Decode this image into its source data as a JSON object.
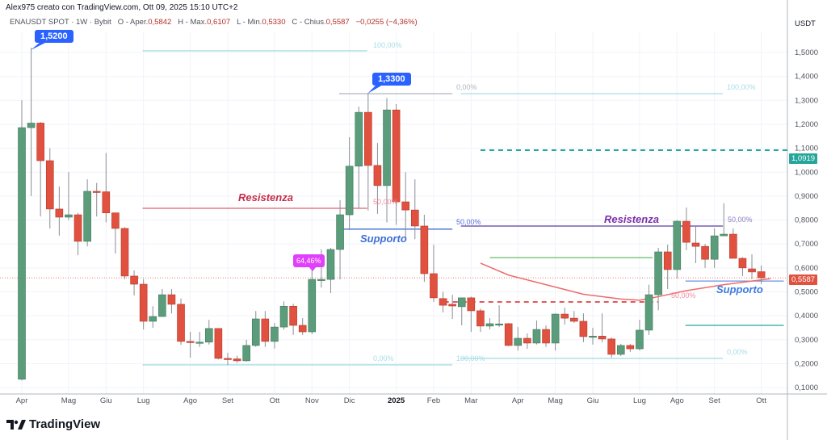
{
  "header": {
    "author_line": "Alex975 creato con TradingView.com, Ott 09, 2025 15:10 UTC+2",
    "symbol": "ENAUSDT SPOT · 1W · Bybit",
    "open_label": "O - Aper.",
    "open": "0,5842",
    "high_label": "H - Max.",
    "high": "0,6107",
    "low_label": "L - Min.",
    "low": "0,5330",
    "close_label": "C - Chius.",
    "close": "0,5587",
    "change": "−0,0255 (−4,36%)"
  },
  "axis": {
    "currency": "USDT",
    "current_price": "0,5587",
    "alert_price": "1,0919"
  },
  "brand": "TradingView",
  "colors": {
    "up": "#5b9c7b",
    "down": "#e0513f",
    "axis_current": "#e0513f",
    "axis_alert": "#26a69a",
    "callout": "#2962ff"
  },
  "annotations": {
    "callout_high1": "1,5200",
    "callout_high2": "1,3300",
    "pct_label": "64,46%",
    "resistenza1": "Resistenza",
    "supporto1": "Supporto",
    "resistenza2": "Resistenza",
    "supporto2": "Supporto",
    "fib1_top": "100,00%",
    "fib1_mid": "50,00%",
    "fib1_bottom": "0,00%",
    "fib2_top_left": "0,00%",
    "fib2_top_right": "100,00%",
    "fib2_mid_left": "50,00%",
    "fib2_mid_right": "50,00%",
    "fib2_bottom_left": "100,00%",
    "fib2_bottom_right": "0,00%",
    "fib3_mid": "50,00%"
  },
  "chart_data": {
    "type": "candlestick",
    "title": "ENAUSDT SPOT · 1W · Bybit",
    "ylabel": "USDT",
    "ylim": [
      0.07,
      1.6
    ],
    "y_ticks": [
      "0,1000",
      "0,2000",
      "0,3000",
      "0,4000",
      "0,5000",
      "0,6000",
      "0,7000",
      "0,8000",
      "0,9000",
      "1,0000",
      "1,1000",
      "1,2000",
      "1,3000",
      "1,4000",
      "1,5000"
    ],
    "x_ticks": [
      {
        "label": "Apr",
        "index": 0
      },
      {
        "label": "Mag",
        "index": 5
      },
      {
        "label": "Giu",
        "index": 9
      },
      {
        "label": "Lug",
        "index": 13
      },
      {
        "label": "Ago",
        "index": 18
      },
      {
        "label": "Set",
        "index": 22
      },
      {
        "label": "Ott",
        "index": 27
      },
      {
        "label": "Nov",
        "index": 31
      },
      {
        "label": "Dic",
        "index": 35
      },
      {
        "label": "2025",
        "index": 40
      },
      {
        "label": "Feb",
        "index": 44
      },
      {
        "label": "Mar",
        "index": 48
      },
      {
        "label": "Apr",
        "index": 53
      },
      {
        "label": "Mag",
        "index": 57
      },
      {
        "label": "Giu",
        "index": 61
      },
      {
        "label": "Lug",
        "index": 66
      },
      {
        "label": "Ago",
        "index": 70
      },
      {
        "label": "Set",
        "index": 74
      },
      {
        "label": "Ott",
        "index": 79
      }
    ],
    "candles_ohlc": [
      [
        0.135,
        1.3,
        0.13,
        1.186
      ],
      [
        1.186,
        1.52,
        0.9,
        1.205
      ],
      [
        1.205,
        1.21,
        0.815,
        1.048
      ],
      [
        1.048,
        1.1,
        0.765,
        0.846
      ],
      [
        0.846,
        0.94,
        0.735,
        0.812
      ],
      [
        0.812,
        1.0,
        0.8,
        0.822
      ],
      [
        0.822,
        0.83,
        0.653,
        0.711
      ],
      [
        0.711,
        0.97,
        0.69,
        0.92
      ],
      [
        0.92,
        0.955,
        0.815,
        0.918
      ],
      [
        0.918,
        1.08,
        0.79,
        0.83
      ],
      [
        0.83,
        0.83,
        0.66,
        0.765
      ],
      [
        0.765,
        0.77,
        0.553,
        0.566
      ],
      [
        0.566,
        0.59,
        0.485,
        0.532
      ],
      [
        0.532,
        0.553,
        0.343,
        0.377
      ],
      [
        0.377,
        0.44,
        0.35,
        0.397
      ],
      [
        0.397,
        0.512,
        0.395,
        0.488
      ],
      [
        0.488,
        0.512,
        0.41,
        0.448
      ],
      [
        0.448,
        0.472,
        0.279,
        0.293
      ],
      [
        0.293,
        0.333,
        0.225,
        0.29
      ],
      [
        0.29,
        0.333,
        0.27,
        0.29
      ],
      [
        0.29,
        0.383,
        0.28,
        0.347
      ],
      [
        0.347,
        0.347,
        0.218,
        0.222
      ],
      [
        0.222,
        0.245,
        0.195,
        0.22
      ],
      [
        0.22,
        0.233,
        0.203,
        0.212
      ],
      [
        0.212,
        0.3,
        0.208,
        0.276
      ],
      [
        0.276,
        0.42,
        0.27,
        0.387
      ],
      [
        0.387,
        0.42,
        0.27,
        0.293
      ],
      [
        0.293,
        0.37,
        0.263,
        0.353
      ],
      [
        0.353,
        0.46,
        0.343,
        0.44
      ],
      [
        0.44,
        0.45,
        0.32,
        0.36
      ],
      [
        0.36,
        0.39,
        0.32,
        0.333
      ],
      [
        0.333,
        0.59,
        0.323,
        0.552
      ],
      [
        0.552,
        0.677,
        0.518,
        0.552
      ],
      [
        0.552,
        0.684,
        0.495,
        0.677
      ],
      [
        0.677,
        0.883,
        0.552,
        0.822
      ],
      [
        0.822,
        1.146,
        0.758,
        1.025
      ],
      [
        1.025,
        1.274,
        0.85,
        1.25
      ],
      [
        1.25,
        1.33,
        0.84,
        1.028
      ],
      [
        1.028,
        1.122,
        0.826,
        0.944
      ],
      [
        0.944,
        1.31,
        0.79,
        1.26
      ],
      [
        1.26,
        1.284,
        0.78,
        0.876
      ],
      [
        0.876,
        1.0,
        0.724,
        0.842
      ],
      [
        0.842,
        0.97,
        0.72,
        0.775
      ],
      [
        0.775,
        0.822,
        0.542,
        0.576
      ],
      [
        0.576,
        0.697,
        0.458,
        0.475
      ],
      [
        0.472,
        0.5,
        0.414,
        0.444
      ],
      [
        0.448,
        0.488,
        0.387,
        0.441
      ],
      [
        0.438,
        0.475,
        0.36,
        0.475
      ],
      [
        0.475,
        0.48,
        0.333,
        0.421
      ],
      [
        0.421,
        0.43,
        0.333,
        0.357
      ],
      [
        0.357,
        0.39,
        0.343,
        0.367
      ],
      [
        0.366,
        0.444,
        0.353,
        0.366
      ],
      [
        0.367,
        0.37,
        0.273,
        0.276
      ],
      [
        0.276,
        0.353,
        0.255,
        0.306
      ],
      [
        0.306,
        0.326,
        0.262,
        0.286
      ],
      [
        0.286,
        0.38,
        0.28,
        0.343
      ],
      [
        0.343,
        0.36,
        0.27,
        0.286
      ],
      [
        0.286,
        0.41,
        0.255,
        0.407
      ],
      [
        0.407,
        0.434,
        0.363,
        0.39
      ],
      [
        0.39,
        0.42,
        0.37,
        0.377
      ],
      [
        0.377,
        0.41,
        0.29,
        0.313
      ],
      [
        0.315,
        0.35,
        0.28,
        0.315
      ],
      [
        0.315,
        0.41,
        0.29,
        0.303
      ],
      [
        0.303,
        0.31,
        0.226,
        0.239
      ],
      [
        0.239,
        0.283,
        0.232,
        0.276
      ],
      [
        0.276,
        0.283,
        0.249,
        0.262
      ],
      [
        0.262,
        0.383,
        0.255,
        0.34
      ],
      [
        0.34,
        0.53,
        0.32,
        0.488
      ],
      [
        0.488,
        0.684,
        0.423,
        0.667
      ],
      [
        0.667,
        0.697,
        0.512,
        0.593
      ],
      [
        0.593,
        0.8,
        0.556,
        0.795
      ],
      [
        0.795,
        0.852,
        0.674,
        0.707
      ],
      [
        0.704,
        0.775,
        0.62,
        0.69
      ],
      [
        0.69,
        0.7,
        0.6,
        0.636
      ],
      [
        0.636,
        0.765,
        0.6,
        0.734
      ],
      [
        0.734,
        0.87,
        0.734,
        0.741
      ],
      [
        0.741,
        0.765,
        0.64,
        0.64
      ],
      [
        0.64,
        0.645,
        0.566,
        0.6
      ],
      [
        0.596,
        0.657,
        0.553,
        0.583
      ],
      [
        0.5842,
        0.6107,
        0.533,
        0.5587
      ]
    ],
    "levels": [
      {
        "name": "fib1-100",
        "price": 1.507,
        "from": 12.9,
        "to": 36.9,
        "color": "#a7dde6",
        "style": "solid"
      },
      {
        "name": "fib1-0",
        "price": 0.195,
        "from": 12.9,
        "to": 46,
        "color": "#a7dde6",
        "style": "solid"
      },
      {
        "name": "high-1330",
        "price": 1.328,
        "from": 33.9,
        "to": 46,
        "color": "#b2b5be",
        "style": "solid"
      },
      {
        "name": "fib2-0",
        "price": 1.328,
        "from": 46.9,
        "to": 74.9,
        "color": "#a7dde6",
        "style": "solid"
      },
      {
        "name": "fib2-100",
        "price": 0.222,
        "from": 46.9,
        "to": 74.9,
        "color": "#a7dde6",
        "style": "solid"
      },
      {
        "name": "resistenza-red",
        "price": 0.849,
        "from": 12.9,
        "to": 36.9,
        "color": "#e06070",
        "style": "solid"
      },
      {
        "name": "supporto-blue",
        "price": 0.762,
        "from": 34.3,
        "to": 46,
        "color": "#3d6fd6",
        "style": "solid"
      },
      {
        "name": "resistenza-purple",
        "price": 0.775,
        "from": 46.9,
        "to": 74.9,
        "color": "#5b3fa8",
        "style": "solid"
      },
      {
        "name": "alert-green-dashed",
        "price": 1.092,
        "from": 49,
        "to": 81.8,
        "color": "#26a69a",
        "style": "dashed"
      },
      {
        "name": "green-level",
        "price": 0.643,
        "from": 50,
        "to": 67.4,
        "color": "#66bb6a",
        "style": "solid"
      },
      {
        "name": "red-dashed",
        "price": 0.458,
        "from": 45.1,
        "to": 68,
        "color": "#e05a5a",
        "style": "dashed"
      },
      {
        "name": "supporto2-blue",
        "price": 0.545,
        "from": 70.9,
        "to": 81.4,
        "color": "#6b93e0",
        "style": "solid"
      },
      {
        "name": "teal-level",
        "price": 0.36,
        "from": 70.9,
        "to": 81.4,
        "color": "#26a69a",
        "style": "solid"
      }
    ],
    "moving_average": [
      [
        49,
        0.62
      ],
      [
        52,
        0.57
      ],
      [
        56,
        0.53
      ],
      [
        60,
        0.49
      ],
      [
        64,
        0.47
      ],
      [
        66,
        0.465
      ],
      [
        68,
        0.48
      ],
      [
        71,
        0.505
      ],
      [
        75,
        0.53
      ],
      [
        79,
        0.55
      ],
      [
        80,
        0.555
      ]
    ]
  }
}
